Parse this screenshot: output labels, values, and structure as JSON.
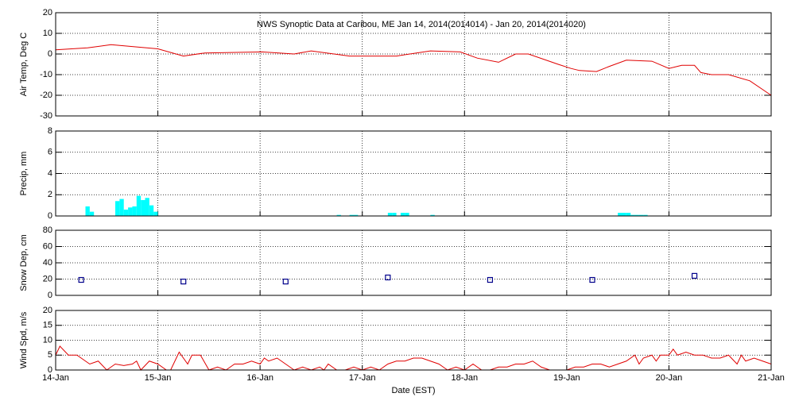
{
  "title": "NWS Synoptic Data at Caribou, ME   Jan 14, 2014(2014014) - Jan 20, 2014(2014020)",
  "x_axis": {
    "label": "Date (EST)",
    "xlim": [
      0,
      168
    ],
    "xticks": [
      {
        "value": 0,
        "label": "14-Jan"
      },
      {
        "value": 24,
        "label": "15-Jan"
      },
      {
        "value": 48,
        "label": "16-Jan"
      },
      {
        "value": 72,
        "label": "17-Jan"
      },
      {
        "value": 96,
        "label": "18-Jan"
      },
      {
        "value": 120,
        "label": "19-Jan"
      },
      {
        "value": 144,
        "label": "20-Jan"
      },
      {
        "value": 168,
        "label": "21-Jan"
      }
    ]
  },
  "chart_data": [
    {
      "type": "line",
      "ylabel": "Air Temp, Deg C",
      "color": "#e00000",
      "grid": true,
      "ylim": [
        -30,
        20
      ],
      "yticks": [
        -30,
        -20,
        -10,
        0,
        10,
        20
      ],
      "x": [
        0,
        7.5,
        13,
        24,
        30,
        35,
        48.5,
        56,
        60,
        69,
        80,
        88,
        95,
        99,
        104,
        108,
        111,
        118,
        121,
        123,
        127,
        130,
        134,
        140,
        144,
        147,
        150,
        151.5,
        154,
        158,
        163,
        168
      ],
      "values": [
        2,
        3,
        4.5,
        2.5,
        -1,
        0.5,
        1,
        0,
        1.5,
        -1,
        -1,
        1.5,
        1,
        -2,
        -4,
        0,
        0,
        -5,
        -7,
        -8,
        -8.5,
        -6,
        -3,
        -3.5,
        -7,
        -5.5,
        -5.5,
        -9,
        -10,
        -10,
        -13,
        -20
      ]
    },
    {
      "type": "bar",
      "ylabel": "Precip, mm",
      "color": "#00ffff",
      "grid": true,
      "ylim": [
        0,
        8
      ],
      "yticks": [
        0,
        2,
        4,
        6,
        8
      ],
      "x": [
        7,
        8,
        14,
        15,
        16,
        17,
        18,
        19,
        20,
        21,
        22,
        23,
        66,
        69,
        70,
        78,
        79,
        81,
        82,
        88,
        132,
        133,
        134,
        135,
        136,
        137,
        138
      ],
      "values": [
        0.9,
        0.4,
        1.4,
        1.6,
        0.6,
        0.8,
        0.9,
        1.9,
        1.5,
        1.7,
        1.0,
        0.4,
        0.1,
        0.1,
        0.1,
        0.3,
        0.3,
        0.3,
        0.3,
        0.1,
        0.3,
        0.3,
        0.3,
        0.1,
        0.1,
        0.1,
        0.1
      ]
    },
    {
      "type": "scatter",
      "ylabel": "Snow Dep, cm",
      "color": "#00008b",
      "grid": true,
      "ylim": [
        0,
        80
      ],
      "yticks": [
        0,
        20,
        40,
        60,
        80
      ],
      "x": [
        6,
        30,
        54,
        78,
        102,
        126,
        150
      ],
      "values": [
        19,
        17,
        17,
        22,
        19,
        19,
        24
      ]
    },
    {
      "type": "line",
      "ylabel": "Wind Spd, m/s",
      "color": "#e00000",
      "grid": true,
      "ylim": [
        0,
        20
      ],
      "yticks": [
        0,
        5,
        10,
        15,
        20
      ],
      "x": [
        0,
        1,
        3,
        5,
        7,
        8,
        10,
        12,
        14,
        16,
        18,
        19,
        20,
        22,
        24,
        26,
        27,
        29,
        31,
        32,
        34,
        36,
        38,
        40,
        42,
        44,
        46,
        48,
        49,
        50,
        52,
        54,
        56,
        58,
        60,
        62,
        63,
        64,
        66,
        68,
        70,
        72,
        74,
        76,
        78,
        80,
        82,
        84,
        86,
        88,
        90,
        92,
        94,
        96,
        98,
        100,
        102,
        104,
        106,
        108,
        110,
        112,
        114,
        116,
        118,
        120,
        122,
        124,
        126,
        128,
        130,
        132,
        134,
        136,
        137,
        138,
        140,
        141,
        142,
        144,
        145,
        146,
        148,
        150,
        152,
        154,
        156,
        158,
        160,
        161,
        162,
        164,
        166,
        168
      ],
      "values": [
        5,
        8,
        5,
        5,
        3,
        2,
        3,
        0,
        2,
        1.5,
        2,
        3,
        0,
        3,
        2,
        0,
        0,
        6,
        2,
        5,
        5,
        0,
        1,
        0,
        2,
        2,
        3,
        2,
        4,
        3,
        4,
        2,
        0,
        1,
        0,
        1,
        0,
        2,
        0,
        0,
        1,
        0,
        1,
        0,
        2,
        3,
        3,
        4,
        4,
        3,
        2,
        0,
        1,
        0,
        2,
        0,
        0,
        1,
        1,
        2,
        2,
        3,
        1,
        0,
        0,
        0,
        1,
        1,
        2,
        2,
        1,
        2,
        3,
        5,
        2,
        4,
        5,
        3,
        5,
        5,
        7,
        5,
        6,
        5,
        5,
        4,
        4,
        5,
        2,
        5,
        3,
        4,
        3,
        2
      ]
    }
  ]
}
